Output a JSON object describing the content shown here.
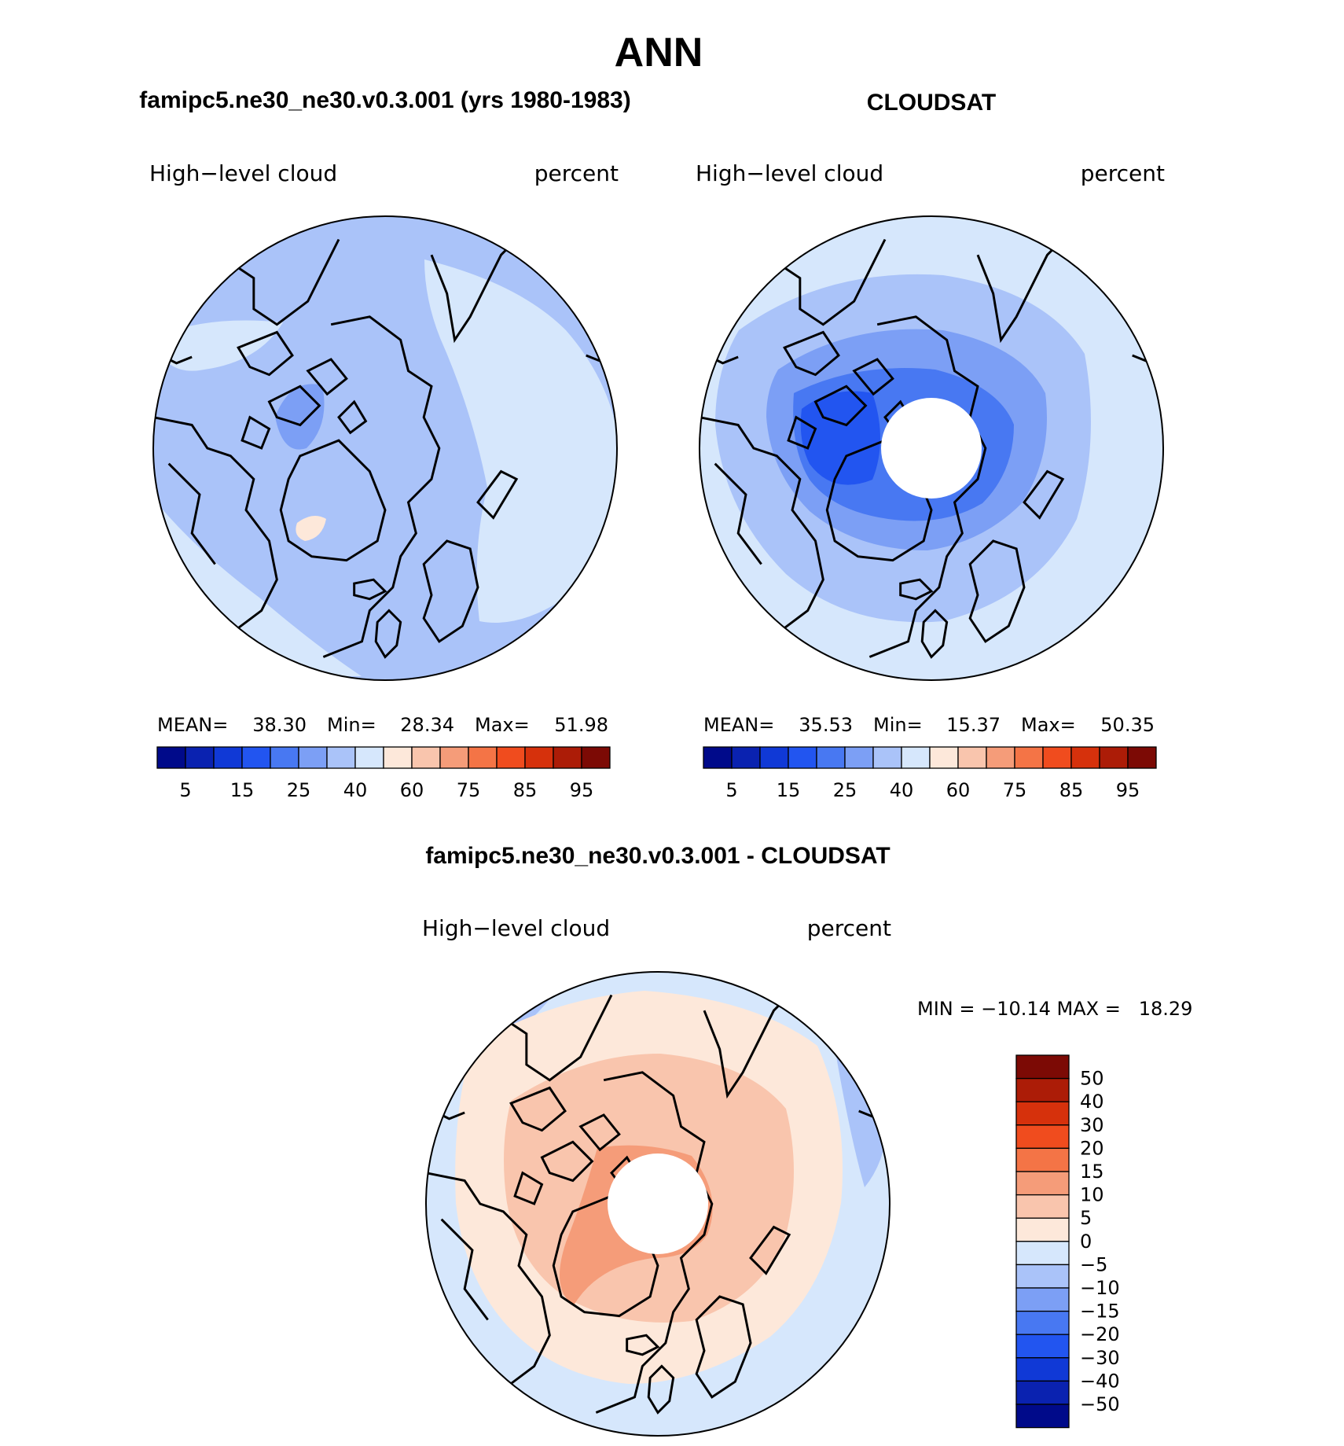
{
  "figure": {
    "season": "ANN",
    "panel1_title": "famipc5.ne30_ne30.v0.3.001 (yrs 1980-1983)",
    "panel2_title": "CLOUDSAT",
    "panel3_title": "famipc5.ne30_ne30.v0.3.001 - CLOUDSAT"
  },
  "panels": [
    {
      "left_label": "High−level cloud",
      "right_label": "percent",
      "mean_label": "MEAN=",
      "mean": "38.30",
      "min_label": "Min=",
      "min": "28.34",
      "max_label": "Max=",
      "max": "51.98"
    },
    {
      "left_label": "High−level cloud",
      "right_label": "percent",
      "mean_label": "MEAN=",
      "mean": "35.53",
      "min_label": "Min=",
      "min": "15.37",
      "max_label": "Max=",
      "max": "50.35"
    },
    {
      "left_label": "High−level cloud",
      "right_label": "percent",
      "minmax_text": "MIN = −10.14 MAX =   18.29"
    }
  ],
  "colorbar_h": {
    "colors": [
      "#000a8a",
      "#0a22b0",
      "#1039d6",
      "#2255f0",
      "#4878f2",
      "#7c9ff5",
      "#aac3f9",
      "#d6e7fc",
      "#fde8da",
      "#f9c5ad",
      "#f59c79",
      "#f47446",
      "#f04c1e",
      "#d6310c",
      "#ac1c07",
      "#7c0a05"
    ],
    "labels": [
      "5",
      "15",
      "25",
      "40",
      "60",
      "75",
      "85",
      "95"
    ]
  },
  "colorbar_v": {
    "colors": [
      "#7c0a05",
      "#ac1c07",
      "#d6310c",
      "#f04c1e",
      "#f47446",
      "#f59c79",
      "#f9c5ad",
      "#fde8da",
      "#d6e7fc",
      "#aac3f9",
      "#7c9ff5",
      "#4878f2",
      "#2255f0",
      "#1039d6",
      "#0a22b0",
      "#000a8a"
    ],
    "labels": [
      "50",
      "40",
      "30",
      "20",
      "15",
      "10",
      "5",
      "0",
      "−5",
      "−10",
      "−15",
      "−20",
      "−30",
      "−40",
      "−50"
    ]
  },
  "map_colors": {
    "lev_0_10": "#d6e7fc",
    "lev_10_20": "#aac3f9",
    "lev_20_30": "#7c9ff5",
    "lev_30_40": "#4878f2",
    "lev_40_50": "#2255f0",
    "pos_0_5": "#fde8da",
    "pos_5_10": "#f9c5ad",
    "pos_10_15": "#f59c79",
    "coast": "#000000"
  }
}
